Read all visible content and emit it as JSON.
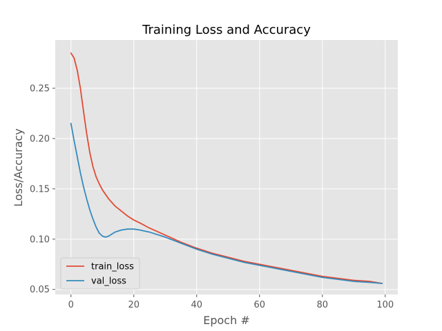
{
  "chart_data": {
    "type": "line",
    "title": "Training Loss and Accuracy",
    "xlabel": "Epoch #",
    "ylabel": "Loss/Accuracy",
    "xlim": [
      -5,
      104
    ],
    "ylim": [
      0.045,
      0.298
    ],
    "xticks": [
      0,
      20,
      40,
      60,
      80,
      100
    ],
    "yticks": [
      0.05,
      0.1,
      0.15,
      0.2,
      0.25
    ],
    "ytick_labels": [
      "0.05",
      "0.10",
      "0.15",
      "0.20",
      "0.25"
    ],
    "grid": true,
    "legend_position": "bottom-left",
    "series": [
      {
        "name": "train_loss",
        "color": "#E24A33",
        "x": [
          0,
          1,
          2,
          3,
          4,
          5,
          6,
          7,
          8,
          9,
          10,
          12,
          14,
          16,
          18,
          20,
          22,
          25,
          30,
          35,
          40,
          45,
          50,
          55,
          60,
          65,
          70,
          75,
          80,
          85,
          90,
          95,
          99
        ],
        "y": [
          0.285,
          0.28,
          0.268,
          0.25,
          0.227,
          0.205,
          0.186,
          0.172,
          0.162,
          0.155,
          0.149,
          0.14,
          0.133,
          0.128,
          0.123,
          0.119,
          0.116,
          0.111,
          0.104,
          0.097,
          0.091,
          0.086,
          0.082,
          0.078,
          0.075,
          0.072,
          0.069,
          0.066,
          0.063,
          0.061,
          0.059,
          0.058,
          0.056
        ]
      },
      {
        "name": "val_loss",
        "color": "#348ABD",
        "x": [
          0,
          1,
          2,
          3,
          4,
          5,
          6,
          7,
          8,
          9,
          10,
          11,
          12,
          13,
          14,
          15,
          16,
          18,
          20,
          22,
          25,
          30,
          35,
          40,
          45,
          50,
          55,
          60,
          65,
          70,
          75,
          80,
          85,
          90,
          95,
          99
        ],
        "y": [
          0.215,
          0.198,
          0.182,
          0.166,
          0.152,
          0.14,
          0.129,
          0.12,
          0.112,
          0.106,
          0.103,
          0.102,
          0.103,
          0.105,
          0.107,
          0.108,
          0.109,
          0.11,
          0.11,
          0.109,
          0.107,
          0.102,
          0.096,
          0.09,
          0.085,
          0.081,
          0.077,
          0.074,
          0.071,
          0.068,
          0.065,
          0.062,
          0.06,
          0.058,
          0.057,
          0.056
        ]
      }
    ]
  }
}
